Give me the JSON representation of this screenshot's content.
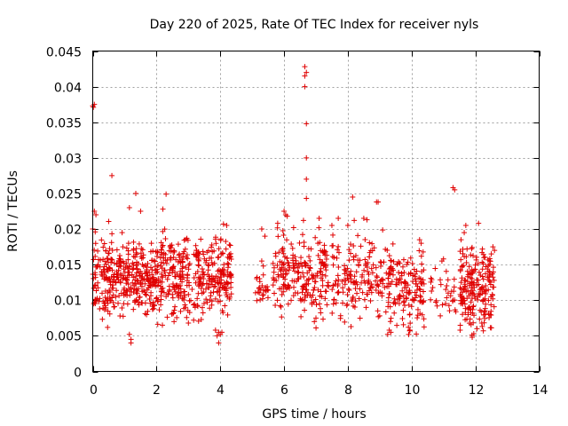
{
  "chart_data": {
    "type": "scatter",
    "title": "Day 220 of 2025, Rate Of TEC Index for receiver nyls",
    "xlabel": "GPS time / hours",
    "ylabel": "ROTI / TECUs",
    "xlim": [
      0,
      14
    ],
    "ylim": [
      0,
      0.045
    ],
    "xticks": [
      "0",
      "2",
      "4",
      "6",
      "8",
      "10",
      "12",
      "14"
    ],
    "yticks": [
      "0",
      "0.005",
      "0.01",
      "0.015",
      "0.02",
      "0.025",
      "0.03",
      "0.035",
      "0.04",
      "0.045"
    ],
    "grid": true,
    "marker": "plus",
    "color": "#e00000",
    "clusters": [
      {
        "x_start": 0.0,
        "x_end": 4.35,
        "y_center": 0.0135,
        "y_spread": 0.0035,
        "count": 720
      },
      {
        "x_start": 5.1,
        "x_end": 5.5,
        "y_center": 0.012,
        "y_spread": 0.0018,
        "count": 25
      },
      {
        "x_start": 5.65,
        "x_end": 7.4,
        "y_center": 0.0135,
        "y_spread": 0.0035,
        "count": 220
      },
      {
        "x_start": 7.5,
        "x_end": 9.2,
        "y_center": 0.013,
        "y_spread": 0.0035,
        "count": 160
      },
      {
        "x_start": 9.2,
        "x_end": 10.4,
        "y_center": 0.012,
        "y_spread": 0.0035,
        "count": 150
      },
      {
        "x_start": 10.5,
        "x_end": 11.4,
        "y_center": 0.011,
        "y_spread": 0.002,
        "count": 30
      },
      {
        "x_start": 11.5,
        "x_end": 12.6,
        "y_center": 0.012,
        "y_spread": 0.0035,
        "count": 200
      }
    ],
    "points": [
      {
        "x": 0.0,
        "y": 0.0373
      },
      {
        "x": 0.05,
        "y": 0.0375
      },
      {
        "x": 0.02,
        "y": 0.0371
      },
      {
        "x": 0.6,
        "y": 0.0275
      },
      {
        "x": 1.35,
        "y": 0.025
      },
      {
        "x": 2.3,
        "y": 0.0249
      },
      {
        "x": 1.15,
        "y": 0.023
      },
      {
        "x": 1.5,
        "y": 0.0225
      },
      {
        "x": 2.2,
        "y": 0.0228
      },
      {
        "x": 0.05,
        "y": 0.0225
      },
      {
        "x": 0.1,
        "y": 0.022
      },
      {
        "x": 0.0,
        "y": 0.02
      },
      {
        "x": 1.15,
        "y": 0.0052
      },
      {
        "x": 1.2,
        "y": 0.0045
      },
      {
        "x": 1.2,
        "y": 0.004
      },
      {
        "x": 2.55,
        "y": 0.007
      },
      {
        "x": 3.0,
        "y": 0.0068
      },
      {
        "x": 3.95,
        "y": 0.0055
      },
      {
        "x": 4.0,
        "y": 0.0052
      },
      {
        "x": 3.85,
        "y": 0.0058
      },
      {
        "x": 3.9,
        "y": 0.005
      },
      {
        "x": 4.05,
        "y": 0.0055
      },
      {
        "x": 3.95,
        "y": 0.004
      },
      {
        "x": 4.2,
        "y": 0.0205
      },
      {
        "x": 4.1,
        "y": 0.0207
      },
      {
        "x": 6.65,
        "y": 0.0428
      },
      {
        "x": 6.7,
        "y": 0.042
      },
      {
        "x": 6.65,
        "y": 0.0415
      },
      {
        "x": 6.65,
        "y": 0.04
      },
      {
        "x": 6.7,
        "y": 0.0348
      },
      {
        "x": 6.7,
        "y": 0.03
      },
      {
        "x": 6.7,
        "y": 0.027
      },
      {
        "x": 6.7,
        "y": 0.0243
      },
      {
        "x": 7.1,
        "y": 0.0215
      },
      {
        "x": 6.0,
        "y": 0.0225
      },
      {
        "x": 6.05,
        "y": 0.022
      },
      {
        "x": 6.1,
        "y": 0.0218
      },
      {
        "x": 5.8,
        "y": 0.0208
      },
      {
        "x": 5.3,
        "y": 0.02
      },
      {
        "x": 5.4,
        "y": 0.019
      },
      {
        "x": 5.3,
        "y": 0.0155
      },
      {
        "x": 5.35,
        "y": 0.0148
      },
      {
        "x": 6.3,
        "y": 0.0202
      },
      {
        "x": 8.15,
        "y": 0.0245
      },
      {
        "x": 8.2,
        "y": 0.0212
      },
      {
        "x": 8.0,
        "y": 0.0205
      },
      {
        "x": 7.7,
        "y": 0.0215
      },
      {
        "x": 7.5,
        "y": 0.0205
      },
      {
        "x": 8.5,
        "y": 0.0215
      },
      {
        "x": 8.9,
        "y": 0.0238
      },
      {
        "x": 8.95,
        "y": 0.0238
      },
      {
        "x": 8.6,
        "y": 0.0213
      },
      {
        "x": 8.1,
        "y": 0.0063
      },
      {
        "x": 7.0,
        "y": 0.0075
      },
      {
        "x": 6.95,
        "y": 0.007
      },
      {
        "x": 9.3,
        "y": 0.0058
      },
      {
        "x": 9.35,
        "y": 0.0055
      },
      {
        "x": 9.25,
        "y": 0.0052
      },
      {
        "x": 9.9,
        "y": 0.0062
      },
      {
        "x": 9.95,
        "y": 0.0058
      },
      {
        "x": 10.25,
        "y": 0.0185
      },
      {
        "x": 10.3,
        "y": 0.018
      },
      {
        "x": 10.9,
        "y": 0.0078
      },
      {
        "x": 10.8,
        "y": 0.0092
      },
      {
        "x": 10.95,
        "y": 0.0155
      },
      {
        "x": 11.0,
        "y": 0.0158
      },
      {
        "x": 11.3,
        "y": 0.0258
      },
      {
        "x": 11.35,
        "y": 0.0255
      },
      {
        "x": 11.3,
        "y": 0.01
      },
      {
        "x": 11.9,
        "y": 0.0048
      },
      {
        "x": 11.95,
        "y": 0.0053
      },
      {
        "x": 12.05,
        "y": 0.006
      },
      {
        "x": 12.1,
        "y": 0.0208
      },
      {
        "x": 12.2,
        "y": 0.0068
      },
      {
        "x": 12.55,
        "y": 0.0175
      },
      {
        "x": 12.6,
        "y": 0.017
      },
      {
        "x": 12.5,
        "y": 0.0165
      },
      {
        "x": 11.7,
        "y": 0.0205
      },
      {
        "x": 11.65,
        "y": 0.0195
      },
      {
        "x": 11.55,
        "y": 0.0185
      }
    ]
  }
}
